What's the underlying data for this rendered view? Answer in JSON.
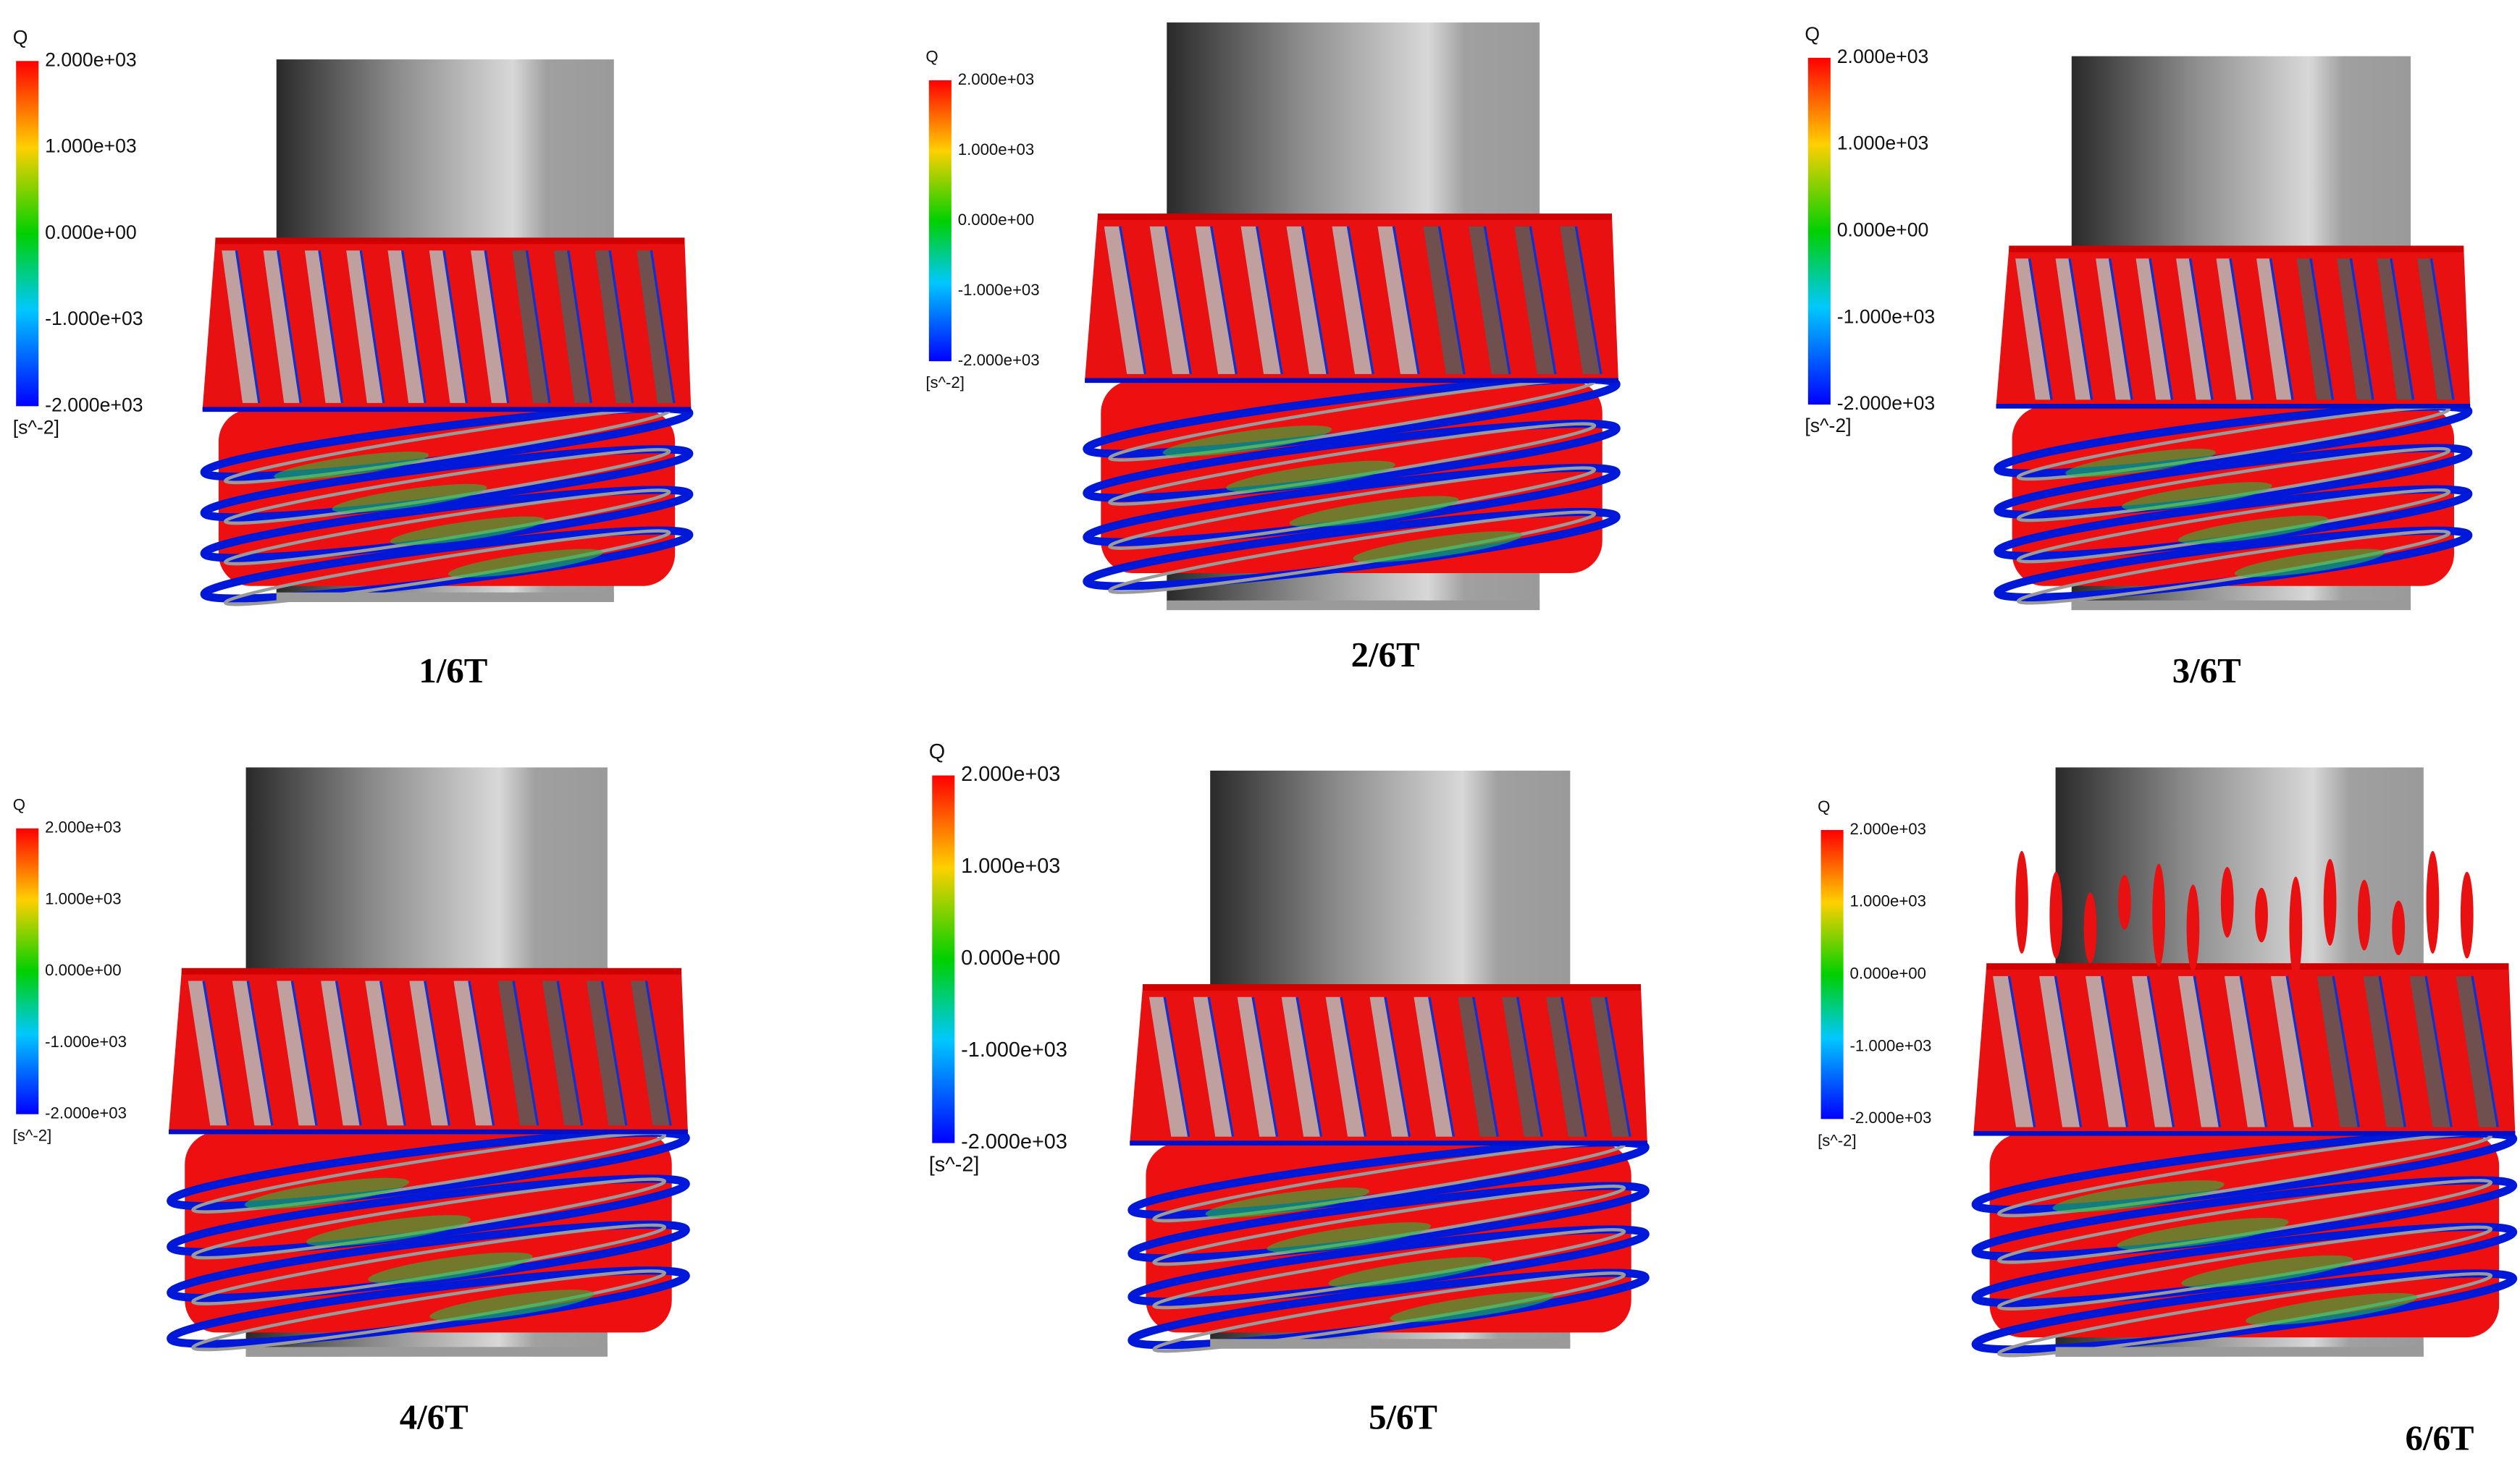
{
  "panels": [
    {
      "legend": {
        "title": "Q",
        "labels": [
          "2.000e+03",
          "1.000e+03",
          "0.000e+00",
          "-1.000e+03",
          "-2.000e+03"
        ],
        "unit": "[s^-2]"
      },
      "caption": "1/6T"
    },
    {
      "legend": {
        "title": "Q",
        "labels": [
          "2.000e+03",
          "1.000e+03",
          "0.000e+00",
          "-1.000e+03",
          "-2.000e+03"
        ],
        "unit": "[s^-2]"
      },
      "caption": "2/6T"
    },
    {
      "legend": {
        "title": "Q",
        "labels": [
          "2.000e+03",
          "1.000e+03",
          "0.000e+00",
          "-1.000e+03",
          "-2.000e+03"
        ],
        "unit": "[s^-2]"
      },
      "caption": "3/6T"
    },
    {
      "legend": {
        "title": "Q",
        "labels": [
          "2.000e+03",
          "1.000e+03",
          "0.000e+00",
          "-1.000e+03",
          "-2.000e+03"
        ],
        "unit": "[s^-2]"
      },
      "caption": "4/6T"
    },
    {
      "legend": {
        "title": "Q",
        "labels": [
          "2.000e+03",
          "1.000e+03",
          "0.000e+00",
          "-1.000e+03",
          "-2.000e+03"
        ],
        "unit": "[s^-2]"
      },
      "caption": "5/6T"
    },
    {
      "legend": {
        "title": "Q",
        "labels": [
          "2.000e+03",
          "1.000e+03",
          "0.000e+00",
          "-1.000e+03",
          "-2.000e+03"
        ],
        "unit": "[s^-2]"
      },
      "caption": "6/6T"
    }
  ]
}
